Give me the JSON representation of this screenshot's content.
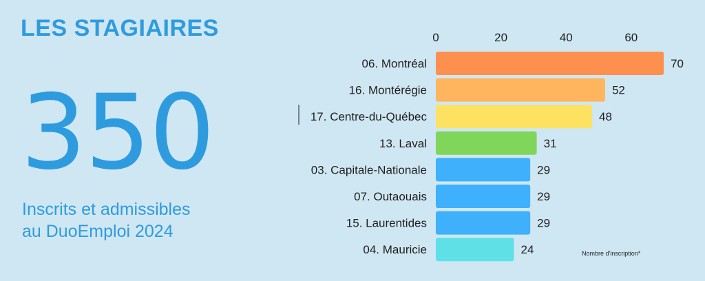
{
  "page": {
    "title": "LES STAGIAIRES",
    "total": "350",
    "subtitle_line1": "Inscrits et admissibles",
    "subtitle_line2": "au DuoEmploi 2024"
  },
  "chart_data": {
    "type": "bar",
    "orientation": "horizontal",
    "categories": [
      "06. Montréal",
      "16. Montérégie",
      "17. Centre-du-Québec",
      "13. Laval",
      "03. Capitale-Nationale",
      "07. Outaouais",
      "15. Laurentides",
      "04. Mauricie"
    ],
    "values": [
      70,
      52,
      48,
      31,
      29,
      29,
      29,
      24
    ],
    "colors": [
      "#fd8f4f",
      "#feb55e",
      "#fde262",
      "#7fd65a",
      "#3fb0fb",
      "#3fb0fb",
      "#3fb0fb",
      "#5fe0e6"
    ],
    "xticks": [
      0,
      20,
      40,
      60
    ],
    "xlim": [
      0,
      70
    ],
    "tick_position": "top",
    "note": "Nombre d'inscription*"
  }
}
